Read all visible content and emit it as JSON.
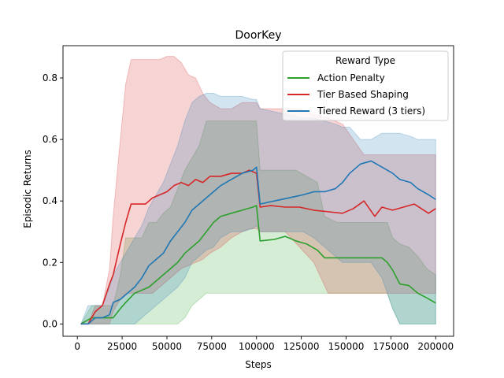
{
  "chart_data": {
    "type": "line",
    "title": "DoorKey",
    "xlabel": "Steps",
    "ylabel": "Episodic Returns",
    "xlim": [
      -8000,
      210000
    ],
    "ylim": [
      -0.04,
      0.905
    ],
    "xticks": [
      0,
      25000,
      50000,
      75000,
      100000,
      125000,
      150000,
      175000,
      200000
    ],
    "xtick_labels": [
      "0",
      "25000",
      "50000",
      "75000",
      "100000",
      "125000",
      "150000",
      "175000",
      "200000"
    ],
    "yticks": [
      0.0,
      0.2,
      0.4,
      0.6,
      0.8
    ],
    "ytick_labels": [
      "0.0",
      "0.2",
      "0.4",
      "0.6",
      "0.8"
    ],
    "grid": false,
    "legend": {
      "title": "Reward Type",
      "placement": "top-right"
    },
    "series": [
      {
        "name": "Action Penalty",
        "color": "#2ca02c",
        "band_opacity": 0.2,
        "x": [
          2000,
          8000,
          14000,
          20000,
          24000,
          27000,
          32000,
          36000,
          40000,
          44000,
          48000,
          52000,
          56000,
          60000,
          64000,
          68000,
          72000,
          76000,
          80000,
          86000,
          92000,
          98000,
          100000,
          102000,
          110000,
          116000,
          122000,
          128000,
          134000,
          138000,
          145000,
          160000,
          170000,
          173000,
          176000,
          180000,
          185000,
          190000,
          195000,
          200000
        ],
        "values": [
          0,
          0.02,
          0.02,
          0.02,
          0.05,
          0.07,
          0.1,
          0.11,
          0.12,
          0.14,
          0.16,
          0.18,
          0.2,
          0.23,
          0.25,
          0.27,
          0.3,
          0.33,
          0.35,
          0.36,
          0.37,
          0.38,
          0.385,
          0.27,
          0.275,
          0.285,
          0.27,
          0.26,
          0.24,
          0.215,
          0.215,
          0.215,
          0.215,
          0.2,
          0.175,
          0.13,
          0.125,
          0.1,
          0.085,
          0.068
        ],
        "lower": [
          0,
          0,
          0,
          0,
          0,
          0,
          0,
          0,
          0,
          0,
          0,
          0,
          0,
          0.02,
          0.06,
          0.08,
          0.1,
          0.1,
          0.1,
          0.1,
          0.1,
          0.1,
          0.1,
          0.1,
          0.1,
          0.1,
          0.1,
          0.1,
          0.1,
          0.1,
          0.1,
          0.1,
          0.1,
          0.1,
          0.05,
          0,
          0,
          0,
          0,
          0
        ],
        "upper": [
          0,
          0.06,
          0.06,
          0.06,
          0.16,
          0.28,
          0.28,
          0.28,
          0.33,
          0.33,
          0.36,
          0.38,
          0.44,
          0.5,
          0.54,
          0.58,
          0.66,
          0.66,
          0.66,
          0.66,
          0.66,
          0.66,
          0.66,
          0.5,
          0.5,
          0.5,
          0.5,
          0.48,
          0.46,
          0.35,
          0.33,
          0.33,
          0.33,
          0.33,
          0.28,
          0.26,
          0.25,
          0.22,
          0.18,
          0.16
        ]
      },
      {
        "name": "Tier Based Shaping",
        "color": "#d62728",
        "band_opacity": 0.2,
        "x": [
          2000,
          6000,
          10000,
          14000,
          18000,
          20000,
          24000,
          27000,
          30000,
          34000,
          38000,
          42000,
          46000,
          50000,
          54000,
          58000,
          62000,
          66000,
          70000,
          74000,
          80000,
          86000,
          92000,
          96000,
          100000,
          102000,
          108000,
          116000,
          124000,
          132000,
          140000,
          148000,
          154000,
          160000,
          166000,
          170000,
          176000,
          182000,
          188000,
          192000,
          196000,
          200000
        ],
        "values": [
          0,
          0,
          0.04,
          0.06,
          0.13,
          0.16,
          0.26,
          0.33,
          0.39,
          0.39,
          0.39,
          0.41,
          0.42,
          0.43,
          0.45,
          0.46,
          0.45,
          0.47,
          0.46,
          0.48,
          0.48,
          0.49,
          0.49,
          0.5,
          0.49,
          0.38,
          0.385,
          0.38,
          0.38,
          0.37,
          0.365,
          0.36,
          0.375,
          0.4,
          0.35,
          0.38,
          0.37,
          0.38,
          0.39,
          0.375,
          0.36,
          0.375
        ],
        "lower": [
          0,
          0,
          0,
          0,
          0,
          0.04,
          0.08,
          0.1,
          0.1,
          0.1,
          0.1,
          0.1,
          0.12,
          0.14,
          0.16,
          0.18,
          0.19,
          0.2,
          0.21,
          0.23,
          0.25,
          0.28,
          0.3,
          0.31,
          0.31,
          0.3,
          0.3,
          0.3,
          0.25,
          0.2,
          0.1,
          0.1,
          0.1,
          0.1,
          0.1,
          0.1,
          0.1,
          0.1,
          0.1,
          0.1,
          0.1,
          0.1
        ],
        "upper": [
          0,
          0,
          0.06,
          0.06,
          0.18,
          0.35,
          0.6,
          0.78,
          0.86,
          0.86,
          0.86,
          0.86,
          0.86,
          0.87,
          0.87,
          0.85,
          0.81,
          0.8,
          0.75,
          0.72,
          0.7,
          0.7,
          0.72,
          0.72,
          0.72,
          0.7,
          0.7,
          0.7,
          0.7,
          0.68,
          0.67,
          0.65,
          0.6,
          0.55,
          0.55,
          0.55,
          0.55,
          0.55,
          0.55,
          0.55,
          0.55,
          0.55
        ]
      },
      {
        "name": "Tiered Reward (3 tiers)",
        "color": "#1f77b4",
        "band_opacity": 0.2,
        "x": [
          2000,
          6000,
          10000,
          14000,
          18000,
          20000,
          24000,
          28000,
          32000,
          36000,
          40000,
          44000,
          48000,
          52000,
          56000,
          60000,
          64000,
          68000,
          72000,
          76000,
          80000,
          86000,
          92000,
          98000,
          100000,
          102000,
          110000,
          118000,
          126000,
          132000,
          138000,
          144000,
          148000,
          152000,
          158000,
          164000,
          170000,
          176000,
          180000,
          186000,
          190000,
          196000,
          200000
        ],
        "values": [
          0,
          0,
          0.02,
          0.02,
          0.03,
          0.07,
          0.08,
          0.1,
          0.12,
          0.15,
          0.19,
          0.21,
          0.23,
          0.27,
          0.3,
          0.33,
          0.37,
          0.39,
          0.41,
          0.43,
          0.45,
          0.47,
          0.49,
          0.5,
          0.51,
          0.39,
          0.4,
          0.41,
          0.42,
          0.43,
          0.43,
          0.44,
          0.46,
          0.49,
          0.52,
          0.53,
          0.51,
          0.49,
          0.47,
          0.46,
          0.44,
          0.42,
          0.405
        ],
        "lower": [
          0,
          0,
          0,
          0,
          0,
          0,
          0,
          0,
          0,
          0.02,
          0.04,
          0.06,
          0.08,
          0.1,
          0.12,
          0.15,
          0.2,
          0.22,
          0.24,
          0.25,
          0.28,
          0.3,
          0.3,
          0.31,
          0.32,
          0.3,
          0.3,
          0.3,
          0.3,
          0.28,
          0.25,
          0.22,
          0.2,
          0.2,
          0.2,
          0.2,
          0.15,
          0.05,
          0,
          0,
          0,
          0,
          0
        ],
        "upper": [
          0,
          0.06,
          0.06,
          0.06,
          0.12,
          0.16,
          0.2,
          0.24,
          0.28,
          0.32,
          0.38,
          0.42,
          0.46,
          0.52,
          0.58,
          0.66,
          0.72,
          0.74,
          0.75,
          0.75,
          0.74,
          0.74,
          0.74,
          0.73,
          0.73,
          0.7,
          0.69,
          0.68,
          0.67,
          0.67,
          0.66,
          0.65,
          0.64,
          0.64,
          0.6,
          0.6,
          0.62,
          0.62,
          0.62,
          0.61,
          0.6,
          0.6,
          0.6
        ]
      }
    ]
  }
}
